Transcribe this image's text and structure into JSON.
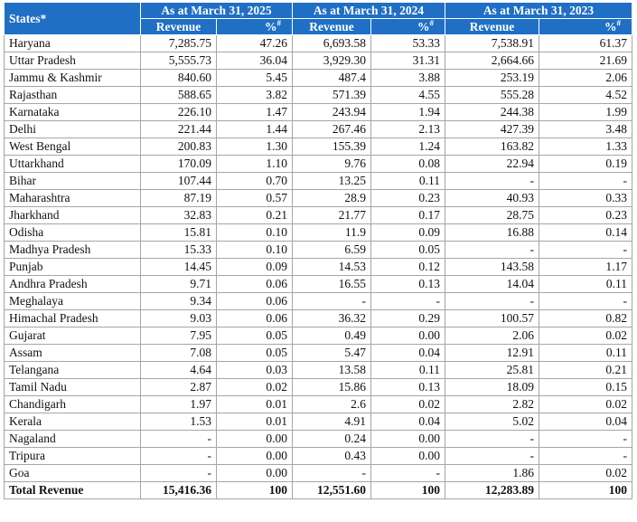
{
  "header": {
    "states_label": "States*",
    "periods": [
      "As at March 31, 2025",
      "As at March 31, 2024",
      "As at March 31, 2023"
    ],
    "revenue_label": "Revenue",
    "percent_label": "%",
    "percent_sup": "#"
  },
  "rows": [
    {
      "state": "Haryana",
      "cells": [
        "7,285.75",
        "47.26",
        "6,693.58",
        "53.33",
        "7,538.91",
        "61.37"
      ]
    },
    {
      "state": "Uttar Pradesh",
      "cells": [
        "5,555.73",
        "36.04",
        "3,929.30",
        "31.31",
        "2,664.66",
        "21.69"
      ]
    },
    {
      "state": "Jammu & Kashmir",
      "cells": [
        "840.60",
        "5.45",
        "487.4",
        "3.88",
        "253.19",
        "2.06"
      ]
    },
    {
      "state": "Rajasthan",
      "cells": [
        "588.65",
        "3.82",
        "571.39",
        "4.55",
        "555.28",
        "4.52"
      ]
    },
    {
      "state": "Karnataka",
      "cells": [
        "226.10",
        "1.47",
        "243.94",
        "1.94",
        "244.38",
        "1.99"
      ]
    },
    {
      "state": "Delhi",
      "cells": [
        "221.44",
        "1.44",
        "267.46",
        "2.13",
        "427.39",
        "3.48"
      ]
    },
    {
      "state": "West Bengal",
      "cells": [
        "200.83",
        "1.30",
        "155.39",
        "1.24",
        "163.82",
        "1.33"
      ]
    },
    {
      "state": "Uttarkhand",
      "cells": [
        "170.09",
        "1.10",
        "9.76",
        "0.08",
        "22.94",
        "0.19"
      ]
    },
    {
      "state": "Bihar",
      "cells": [
        "107.44",
        "0.70",
        "13.25",
        "0.11",
        "-",
        "-"
      ]
    },
    {
      "state": "Maharashtra",
      "cells": [
        "87.19",
        "0.57",
        "28.9",
        "0.23",
        "40.93",
        "0.33"
      ]
    },
    {
      "state": "Jharkhand",
      "cells": [
        "32.83",
        "0.21",
        "21.77",
        "0.17",
        "28.75",
        "0.23"
      ]
    },
    {
      "state": "Odisha",
      "cells": [
        "15.81",
        "0.10",
        "11.9",
        "0.09",
        "16.88",
        "0.14"
      ]
    },
    {
      "state": "Madhya Pradesh",
      "cells": [
        "15.33",
        "0.10",
        "6.59",
        "0.05",
        "-",
        "-"
      ]
    },
    {
      "state": "Punjab",
      "cells": [
        "14.45",
        "0.09",
        "14.53",
        "0.12",
        "143.58",
        "1.17"
      ]
    },
    {
      "state": "Andhra Pradesh",
      "cells": [
        "9.71",
        "0.06",
        "16.55",
        "0.13",
        "14.04",
        "0.11"
      ]
    },
    {
      "state": "Meghalaya",
      "cells": [
        "9.34",
        "0.06",
        "-",
        "-",
        "-",
        "-"
      ]
    },
    {
      "state": "Himachal Pradesh",
      "cells": [
        "9.03",
        "0.06",
        "36.32",
        "0.29",
        "100.57",
        "0.82"
      ]
    },
    {
      "state": "Gujarat",
      "cells": [
        "7.95",
        "0.05",
        "0.49",
        "0.00",
        "2.06",
        "0.02"
      ]
    },
    {
      "state": "Assam",
      "cells": [
        "7.08",
        "0.05",
        "5.47",
        "0.04",
        "12.91",
        "0.11"
      ]
    },
    {
      "state": "Telangana",
      "cells": [
        "4.64",
        "0.03",
        "13.58",
        "0.11",
        "25.81",
        "0.21"
      ]
    },
    {
      "state": "Tamil Nadu",
      "cells": [
        "2.87",
        "0.02",
        "15.86",
        "0.13",
        "18.09",
        "0.15"
      ]
    },
    {
      "state": "Chandigarh",
      "cells": [
        "1.97",
        "0.01",
        "2.6",
        "0.02",
        "2.82",
        "0.02"
      ]
    },
    {
      "state": "Kerala",
      "cells": [
        "1.53",
        "0.01",
        "4.91",
        "0.04",
        "5.02",
        "0.04"
      ]
    },
    {
      "state": "Nagaland",
      "cells": [
        "-",
        "0.00",
        "0.24",
        "0.00",
        "-",
        "-"
      ]
    },
    {
      "state": "Tripura",
      "cells": [
        "-",
        "0.00",
        "0.43",
        "0.00",
        "-",
        "-"
      ]
    },
    {
      "state": "Goa",
      "cells": [
        "-",
        "0.00",
        "-",
        "-",
        "1.86",
        "0.02"
      ]
    }
  ],
  "total": {
    "state": "Total Revenue",
    "cells": [
      "15,416.36",
      "100",
      "12,551.60",
      "100",
      "12,283.89",
      "100"
    ]
  },
  "colors": {
    "header_bg": "#1f6fc5",
    "header_text": "#ffffff",
    "grid": "#a6a6a6"
  }
}
